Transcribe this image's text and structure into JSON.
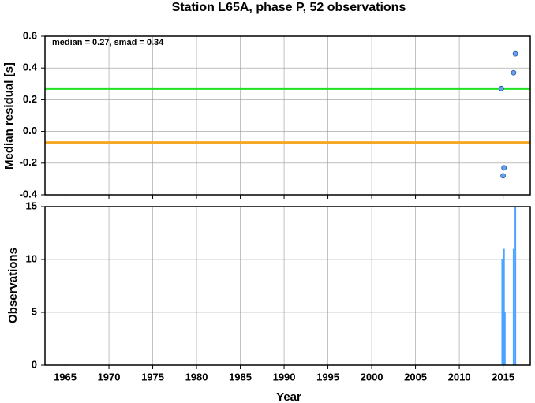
{
  "chart_data": [
    {
      "type": "scatter",
      "title": "Station L65A, phase P, 52 observations",
      "annotation": "median = 0.27, smad = 0.34",
      "ylabel": "Median residual [s]",
      "x": [
        2014.8,
        2015.1,
        2015.0,
        2016.2,
        2016.4
      ],
      "values": [
        0.27,
        -0.23,
        -0.28,
        0.37,
        0.49
      ],
      "color": "#6aa0f0",
      "reference_lines": [
        {
          "value": 0.27,
          "color": "#22e022"
        },
        {
          "value": -0.07,
          "color": "#f5a623"
        }
      ],
      "xlim": [
        1962.7,
        2018.1
      ],
      "xticks": [
        1965,
        1970,
        1975,
        1980,
        1985,
        1990,
        1995,
        2000,
        2005,
        2010,
        2015
      ],
      "ylim": [
        -0.4,
        0.6
      ],
      "yticks": [
        -0.4,
        -0.2,
        {
          "value": 0,
          "label": "0.0"
        },
        0.2,
        0.4,
        0.6
      ],
      "grid": true
    },
    {
      "type": "bar",
      "ylabel": "Observations",
      "xlabel": "Year",
      "x": [
        2014.9,
        2015.1,
        2015.2,
        2016.2,
        2016.4
      ],
      "values": [
        10,
        11,
        5,
        11,
        15
      ],
      "color": "#4aa3ff",
      "xlim": [
        1962.7,
        2018.1
      ],
      "xticks": [
        1965,
        1970,
        1975,
        1980,
        1985,
        1990,
        1995,
        2000,
        2005,
        2010,
        2015
      ],
      "ylim": [
        0,
        15
      ],
      "yticks": [
        0,
        5,
        10,
        15
      ],
      "grid": true
    }
  ]
}
